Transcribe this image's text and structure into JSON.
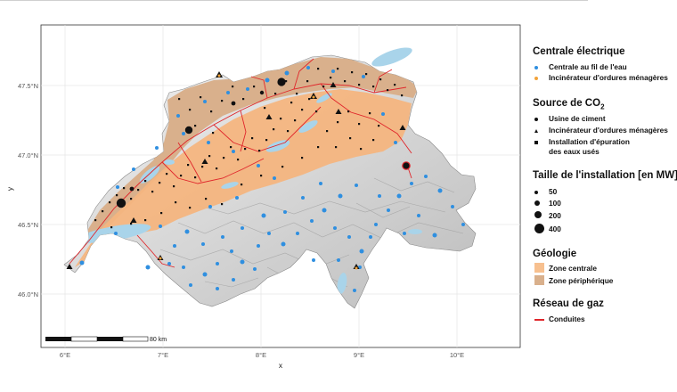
{
  "map": {
    "x_ticks": [
      "6°E",
      "7°E",
      "8°E",
      "9°E",
      "10°E"
    ],
    "y_ticks": [
      "47.5°N",
      "47.0°N",
      "46.5°N",
      "46.0°N"
    ],
    "x_label": "x",
    "y_label": "y",
    "scale_label": "80 km",
    "colors": {
      "central_zone": "#f4b57f",
      "peripheral_zone": "#d9b08c",
      "lakes": "#a9d4ea",
      "river_plant": "#2f8fe0",
      "gas_pipeline": "#e0262b",
      "relief": "#cfcfcf"
    }
  },
  "legend": {
    "plants_title": "Centrale électrique",
    "plants": [
      {
        "label": "Centrale au fil de l'eau",
        "color": "#2f8fe0",
        "icon": "dot"
      },
      {
        "label": "Incinérateur d'ordures ménagères",
        "color": "#f2a33a",
        "icon": "dot"
      }
    ],
    "co2_title_prefix": "Source de CO",
    "co2_title_sub": "2",
    "co2_sources": [
      {
        "label": "Usine de ciment",
        "icon": "circle"
      },
      {
        "label": "Incinérateur d'ordures ménagères",
        "icon": "triangle"
      },
      {
        "label": "Installation d'épuration",
        "label2": "des eaux usés",
        "icon": "square"
      }
    ],
    "size_title": "Taille de l'installation [en MW]",
    "sizes": [
      "50",
      "100",
      "200",
      "400"
    ],
    "geology_title": "Géologie",
    "geology": [
      {
        "label": "Zone centrale",
        "color": "#f7c08f"
      },
      {
        "label": "Zone périphérique",
        "color": "#d9b08c"
      }
    ],
    "gas_title": "Réseau de gaz",
    "gas": [
      {
        "label": "Conduites",
        "color": "#e0262b"
      }
    ]
  }
}
